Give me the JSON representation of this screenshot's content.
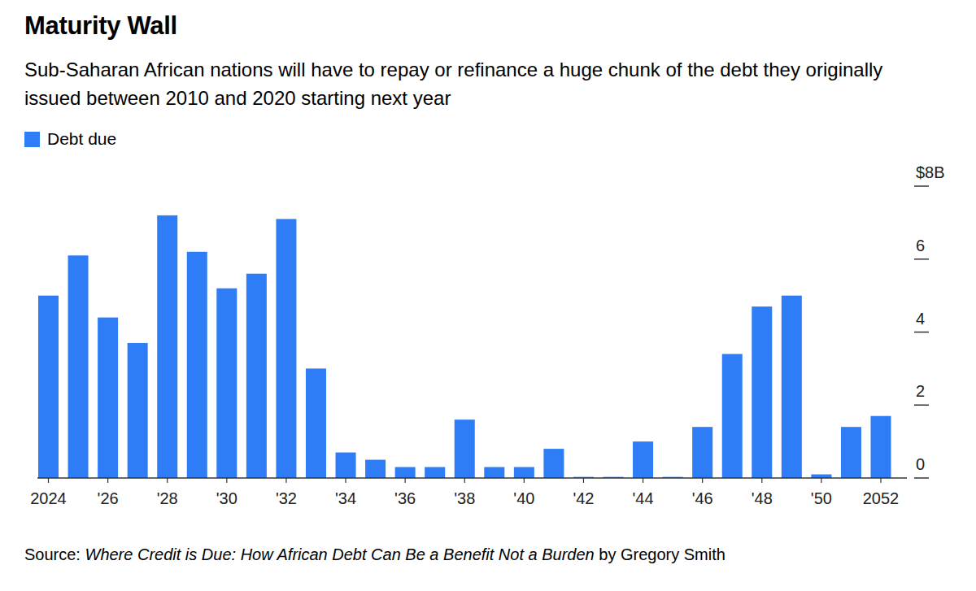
{
  "chart_data": {
    "type": "bar",
    "title": "Maturity Wall",
    "subtitle": "Sub-Saharan African nations will have to repay or refinance a huge chunk of the debt they originally issued between 2010 and 2020 starting next year",
    "categories": [
      "2024",
      null,
      "'26",
      null,
      "'28",
      null,
      "'30",
      null,
      "'32",
      null,
      "'34",
      null,
      "'36",
      null,
      "'38",
      null,
      "'40",
      null,
      "'42",
      null,
      "'44",
      null,
      "'46",
      null,
      "'48",
      null,
      "'50",
      null,
      "2052"
    ],
    "series": [
      {
        "name": "Debt due",
        "color": "#2e7cf6",
        "values": [
          5.0,
          6.1,
          4.4,
          3.7,
          7.2,
          6.2,
          5.2,
          5.6,
          7.1,
          3.0,
          0.7,
          0.5,
          0.3,
          0.3,
          1.6,
          0.3,
          0.3,
          0.8,
          0.03,
          0.03,
          1.0,
          0.03,
          1.4,
          3.4,
          4.7,
          5.0,
          0.1,
          1.4,
          1.7
        ]
      }
    ],
    "ylim": [
      0,
      8
    ],
    "yticks": [
      0,
      2,
      4,
      6,
      {
        "value": 8,
        "label": "$8B"
      }
    ],
    "legend": "top-left",
    "source": [
      "Source:",
      "Where Credit is Due: How African Debt Can Be a Benefit Not a Burden",
      "by Gregory Smith"
    ]
  }
}
